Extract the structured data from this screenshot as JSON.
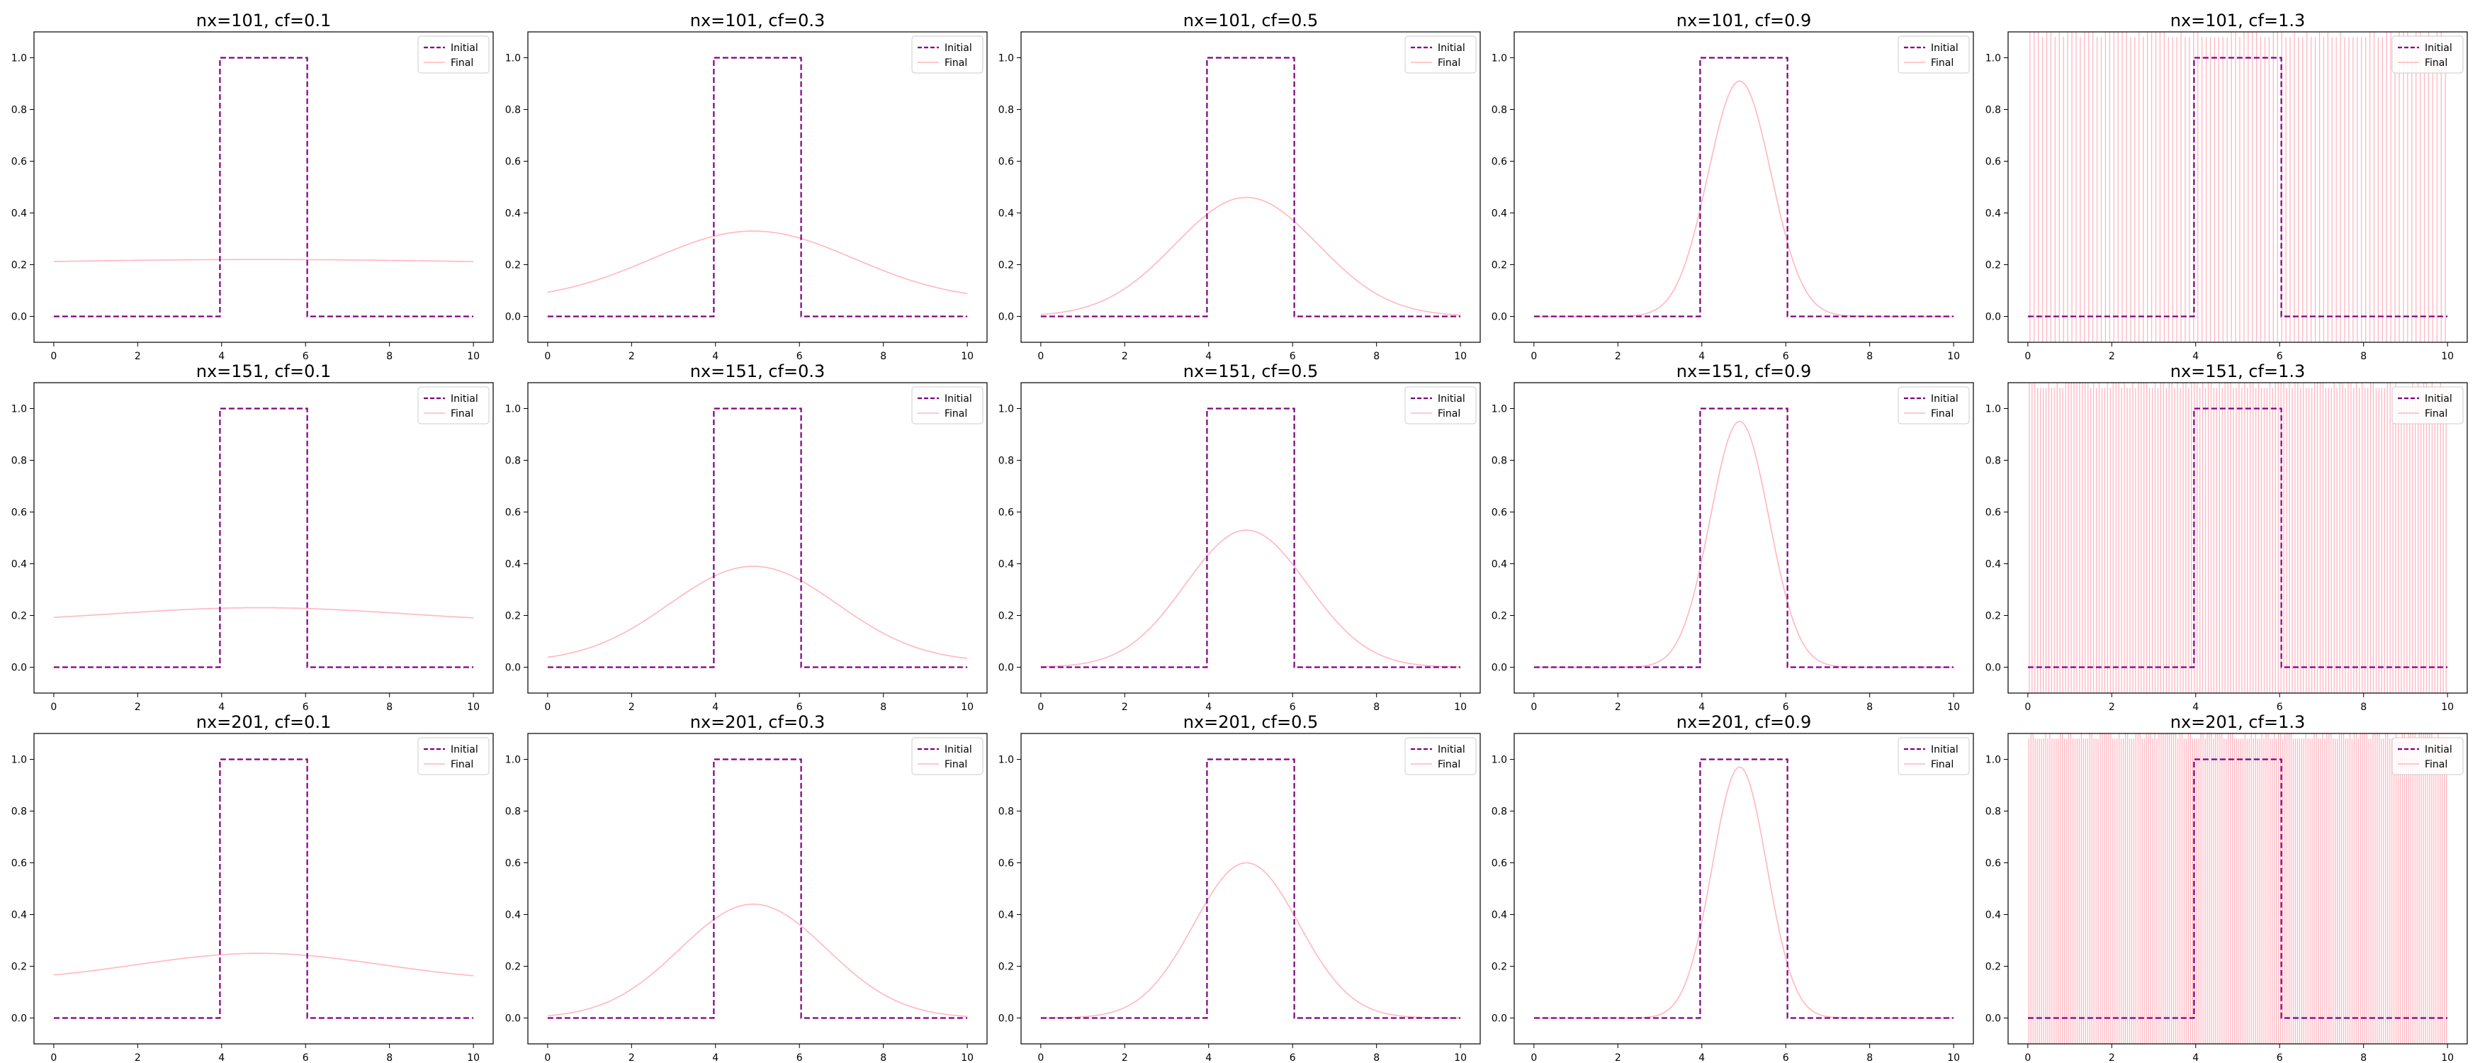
{
  "colors": {
    "initial": "#800080",
    "final": "#ffb6c1",
    "axes": "#000000",
    "background": "#ffffff"
  },
  "chart_data": [
    {
      "type": "line",
      "title": "nx=101, cf=0.1",
      "nx": 101,
      "cf": 0.1,
      "peak_final": 0.22,
      "base_final": 0.2,
      "width_final": 5.0,
      "unstable": false,
      "x_range": [
        0,
        10
      ],
      "ylim": [
        -0.1,
        1.1
      ],
      "xticks": [
        "0",
        "2",
        "4",
        "6",
        "8",
        "10"
      ],
      "yticks": [
        "0.0",
        "0.2",
        "0.4",
        "0.6",
        "0.8",
        "1.0"
      ],
      "legend": [
        "Initial",
        "Final"
      ],
      "series": [
        {
          "name": "Initial",
          "x": [
            0,
            3.96,
            3.96,
            6.04,
            6.04,
            10
          ],
          "y": [
            0,
            0,
            1,
            1,
            0,
            0
          ]
        },
        {
          "name": "Final",
          "description": "smooth broad hump, ~0.20 at edges to ~0.22 at x≈4.9"
        }
      ]
    },
    {
      "type": "line",
      "title": "nx=101, cf=0.3",
      "nx": 101,
      "cf": 0.3,
      "peak_final": 0.33,
      "base_final": 0.06,
      "width_final": 2.4,
      "unstable": false,
      "x_range": [
        0,
        10
      ],
      "ylim": [
        -0.1,
        1.1
      ],
      "xticks": [
        "0",
        "2",
        "4",
        "6",
        "8",
        "10"
      ],
      "yticks": [
        "0.0",
        "0.2",
        "0.4",
        "0.6",
        "0.8",
        "1.0"
      ],
      "legend": [
        "Initial",
        "Final"
      ],
      "series": [
        {
          "name": "Initial",
          "x": [
            0,
            3.96,
            3.96,
            6.04,
            6.04,
            10
          ],
          "y": [
            0,
            0,
            1,
            1,
            0,
            0
          ]
        },
        {
          "name": "Final",
          "description": "oscillating hump ~0.09 at edges to ~0.33 peak"
        }
      ]
    },
    {
      "type": "line",
      "title": "nx=101, cf=0.5",
      "nx": 101,
      "cf": 0.5,
      "peak_final": 0.46,
      "base_final": 0.0,
      "width_final": 1.7,
      "unstable": false,
      "x_range": [
        0,
        10
      ],
      "ylim": [
        -0.1,
        1.1
      ],
      "xticks": [
        "0",
        "2",
        "4",
        "6",
        "8",
        "10"
      ],
      "yticks": [
        "0.0",
        "0.2",
        "0.4",
        "0.6",
        "0.8",
        "1.0"
      ],
      "legend": [
        "Initial",
        "Final"
      ],
      "series": [
        {
          "name": "Initial",
          "x": [
            0,
            3.96,
            3.96,
            6.04,
            6.04,
            10
          ],
          "y": [
            0,
            0,
            1,
            1,
            0,
            0
          ]
        },
        {
          "name": "Final",
          "description": "oscillating hump peaking ~0.46"
        }
      ]
    },
    {
      "type": "line",
      "title": "nx=101, cf=0.9",
      "nx": 101,
      "cf": 0.9,
      "peak_final": 0.91,
      "base_final": 0.0,
      "width_final": 0.75,
      "unstable": false,
      "x_range": [
        0,
        10
      ],
      "ylim": [
        -0.1,
        1.1
      ],
      "xticks": [
        "0",
        "2",
        "4",
        "6",
        "8",
        "10"
      ],
      "yticks": [
        "0.0",
        "0.2",
        "0.4",
        "0.6",
        "0.8",
        "1.0"
      ],
      "legend": [
        "Initial",
        "Final"
      ],
      "series": [
        {
          "name": "Initial",
          "x": [
            0,
            3.96,
            3.96,
            6.04,
            6.04,
            10
          ],
          "y": [
            0,
            0,
            1,
            1,
            0,
            0
          ]
        },
        {
          "name": "Final",
          "description": "narrow hump peaking ~0.91 at x≈4.8"
        }
      ]
    },
    {
      "type": "line",
      "title": "nx=101, cf=1.3",
      "nx": 101,
      "cf": 1.3,
      "unstable": true,
      "spike_count": 100,
      "x_range": [
        0,
        10
      ],
      "ylim": [
        -0.1,
        1.1
      ],
      "xticks": [
        "0",
        "2",
        "4",
        "6",
        "8",
        "10"
      ],
      "yticks": [
        "0.0",
        "0.2",
        "0.4",
        "0.6",
        "0.8",
        "1.0"
      ],
      "legend": [
        "Initial",
        "Final"
      ],
      "series": [
        {
          "name": "Initial",
          "x": [
            0,
            3.96,
            3.96,
            6.04,
            6.04,
            10
          ],
          "y": [
            0,
            0,
            1,
            1,
            0,
            0
          ]
        },
        {
          "name": "Final",
          "description": "unstable: dense vertical spikes across the full y range"
        }
      ]
    },
    {
      "type": "line",
      "title": "nx=151, cf=0.1",
      "nx": 151,
      "cf": 0.1,
      "peak_final": 0.23,
      "base_final": 0.17,
      "width_final": 3.5,
      "unstable": false,
      "x_range": [
        0,
        10
      ],
      "ylim": [
        -0.1,
        1.1
      ],
      "xticks": [
        "0",
        "2",
        "4",
        "6",
        "8",
        "10"
      ],
      "yticks": [
        "0.0",
        "0.2",
        "0.4",
        "0.6",
        "0.8",
        "1.0"
      ],
      "legend": [
        "Initial",
        "Final"
      ],
      "series": [
        {
          "name": "Initial",
          "x": [
            0,
            3.96,
            3.96,
            6.04,
            6.04,
            10
          ],
          "y": [
            0,
            0,
            1,
            1,
            0,
            0
          ]
        },
        {
          "name": "Final",
          "description": "smooth broad hump ~0.18 to ~0.23"
        }
      ]
    },
    {
      "type": "line",
      "title": "nx=151, cf=0.3",
      "nx": 151,
      "cf": 0.3,
      "peak_final": 0.39,
      "base_final": 0.02,
      "width_final": 2.0,
      "unstable": false,
      "x_range": [
        0,
        10
      ],
      "ylim": [
        -0.1,
        1.1
      ],
      "xticks": [
        "0",
        "2",
        "4",
        "6",
        "8",
        "10"
      ],
      "yticks": [
        "0.0",
        "0.2",
        "0.4",
        "0.6",
        "0.8",
        "1.0"
      ],
      "legend": [
        "Initial",
        "Final"
      ],
      "series": [
        {
          "name": "Initial",
          "x": [
            0,
            3.96,
            3.96,
            6.04,
            6.04,
            10
          ],
          "y": [
            0,
            0,
            1,
            1,
            0,
            0
          ]
        },
        {
          "name": "Final",
          "description": "oscillating hump peaking ~0.39"
        }
      ]
    },
    {
      "type": "line",
      "title": "nx=151, cf=0.5",
      "nx": 151,
      "cf": 0.5,
      "peak_final": 0.53,
      "base_final": 0.0,
      "width_final": 1.45,
      "unstable": false,
      "x_range": [
        0,
        10
      ],
      "ylim": [
        -0.1,
        1.1
      ],
      "xticks": [
        "0",
        "2",
        "4",
        "6",
        "8",
        "10"
      ],
      "yticks": [
        "0.0",
        "0.2",
        "0.4",
        "0.6",
        "0.8",
        "1.0"
      ],
      "legend": [
        "Initial",
        "Final"
      ],
      "series": [
        {
          "name": "Initial",
          "x": [
            0,
            3.96,
            3.96,
            6.04,
            6.04,
            10
          ],
          "y": [
            0,
            0,
            1,
            1,
            0,
            0
          ]
        },
        {
          "name": "Final",
          "description": "oscillating hump peaking ~0.53"
        }
      ]
    },
    {
      "type": "line",
      "title": "nx=151, cf=0.9",
      "nx": 151,
      "cf": 0.9,
      "peak_final": 0.95,
      "base_final": 0.0,
      "width_final": 0.7,
      "unstable": false,
      "x_range": [
        0,
        10
      ],
      "ylim": [
        -0.1,
        1.1
      ],
      "xticks": [
        "0",
        "2",
        "4",
        "6",
        "8",
        "10"
      ],
      "yticks": [
        "0.0",
        "0.2",
        "0.4",
        "0.6",
        "0.8",
        "1.0"
      ],
      "legend": [
        "Initial",
        "Final"
      ],
      "series": [
        {
          "name": "Initial",
          "x": [
            0,
            3.96,
            3.96,
            6.04,
            6.04,
            10
          ],
          "y": [
            0,
            0,
            1,
            1,
            0,
            0
          ]
        },
        {
          "name": "Final",
          "description": "narrow hump peaking ~0.95"
        }
      ]
    },
    {
      "type": "line",
      "title": "nx=151, cf=1.3",
      "nx": 151,
      "cf": 1.3,
      "unstable": true,
      "spike_count": 150,
      "x_range": [
        0,
        10
      ],
      "ylim": [
        -0.1,
        1.1
      ],
      "xticks": [
        "0",
        "2",
        "4",
        "6",
        "8",
        "10"
      ],
      "yticks": [
        "0.0",
        "0.2",
        "0.4",
        "0.6",
        "0.8",
        "1.0"
      ],
      "legend": [
        "Initial",
        "Final"
      ],
      "series": [
        {
          "name": "Initial",
          "x": [
            0,
            3.96,
            3.96,
            6.04,
            6.04,
            10
          ],
          "y": [
            0,
            0,
            1,
            1,
            0,
            0
          ]
        },
        {
          "name": "Final",
          "description": "unstable: dense vertical spikes"
        }
      ]
    },
    {
      "type": "line",
      "title": "nx=201, cf=0.1",
      "nx": 201,
      "cf": 0.1,
      "peak_final": 0.25,
      "base_final": 0.14,
      "width_final": 2.9,
      "unstable": false,
      "x_range": [
        0,
        10
      ],
      "ylim": [
        -0.1,
        1.1
      ],
      "xticks": [
        "0",
        "2",
        "4",
        "6",
        "8",
        "10"
      ],
      "yticks": [
        "0.0",
        "0.2",
        "0.4",
        "0.6",
        "0.8",
        "1.0"
      ],
      "legend": [
        "Initial",
        "Final"
      ],
      "series": [
        {
          "name": "Initial",
          "x": [
            0,
            3.96,
            3.96,
            6.04,
            6.04,
            10
          ],
          "y": [
            0,
            0,
            1,
            1,
            0,
            0
          ]
        },
        {
          "name": "Final",
          "description": "smooth broad hump ~0.15 to ~0.25"
        }
      ]
    },
    {
      "type": "line",
      "title": "nx=201, cf=0.3",
      "nx": 201,
      "cf": 0.3,
      "peak_final": 0.44,
      "base_final": 0.0,
      "width_final": 1.75,
      "unstable": false,
      "x_range": [
        0,
        10
      ],
      "ylim": [
        -0.1,
        1.1
      ],
      "xticks": [
        "0",
        "2",
        "4",
        "6",
        "8",
        "10"
      ],
      "yticks": [
        "0.0",
        "0.2",
        "0.4",
        "0.6",
        "0.8",
        "1.0"
      ],
      "legend": [
        "Initial",
        "Final"
      ],
      "series": [
        {
          "name": "Initial",
          "x": [
            0,
            3.96,
            3.96,
            6.04,
            6.04,
            10
          ],
          "y": [
            0,
            0,
            1,
            1,
            0,
            0
          ]
        },
        {
          "name": "Final",
          "description": "oscillating hump peaking ~0.44"
        }
      ]
    },
    {
      "type": "line",
      "title": "nx=201, cf=0.5",
      "nx": 201,
      "cf": 0.5,
      "peak_final": 0.6,
      "base_final": 0.0,
      "width_final": 1.25,
      "unstable": false,
      "x_range": [
        0,
        10
      ],
      "ylim": [
        -0.1,
        1.1
      ],
      "xticks": [
        "0",
        "2",
        "4",
        "6",
        "8",
        "10"
      ],
      "yticks": [
        "0.0",
        "0.2",
        "0.4",
        "0.6",
        "0.8",
        "1.0"
      ],
      "legend": [
        "Initial",
        "Final"
      ],
      "series": [
        {
          "name": "Initial",
          "x": [
            0,
            3.96,
            3.96,
            6.04,
            6.04,
            10
          ],
          "y": [
            0,
            0,
            1,
            1,
            0,
            0
          ]
        },
        {
          "name": "Final",
          "description": "oscillating hump peaking ~0.60"
        }
      ]
    },
    {
      "type": "line",
      "title": "nx=201, cf=0.9",
      "nx": 201,
      "cf": 0.9,
      "peak_final": 0.97,
      "base_final": 0.0,
      "width_final": 0.65,
      "unstable": false,
      "x_range": [
        0,
        10
      ],
      "ylim": [
        -0.1,
        1.1
      ],
      "xticks": [
        "0",
        "2",
        "4",
        "6",
        "8",
        "10"
      ],
      "yticks": [
        "0.0",
        "0.2",
        "0.4",
        "0.6",
        "0.8",
        "1.0"
      ],
      "legend": [
        "Initial",
        "Final"
      ],
      "series": [
        {
          "name": "Initial",
          "x": [
            0,
            3.96,
            3.96,
            6.04,
            6.04,
            10
          ],
          "y": [
            0,
            0,
            1,
            1,
            0,
            0
          ]
        },
        {
          "name": "Final",
          "description": "narrow hump peaking ~0.97"
        }
      ]
    },
    {
      "type": "line",
      "title": "nx=201, cf=1.3",
      "nx": 201,
      "cf": 1.3,
      "unstable": true,
      "spike_count": 200,
      "x_range": [
        0,
        10
      ],
      "ylim": [
        -0.1,
        1.1
      ],
      "xticks": [
        "0",
        "2",
        "4",
        "6",
        "8",
        "10"
      ],
      "yticks": [
        "0.0",
        "0.2",
        "0.4",
        "0.6",
        "0.8",
        "1.0"
      ],
      "legend": [
        "Initial",
        "Final"
      ],
      "series": [
        {
          "name": "Initial",
          "x": [
            0,
            3.96,
            3.96,
            6.04,
            6.04,
            10
          ],
          "y": [
            0,
            0,
            1,
            1,
            0,
            0
          ]
        },
        {
          "name": "Final",
          "description": "unstable: dense vertical spikes"
        }
      ]
    }
  ]
}
